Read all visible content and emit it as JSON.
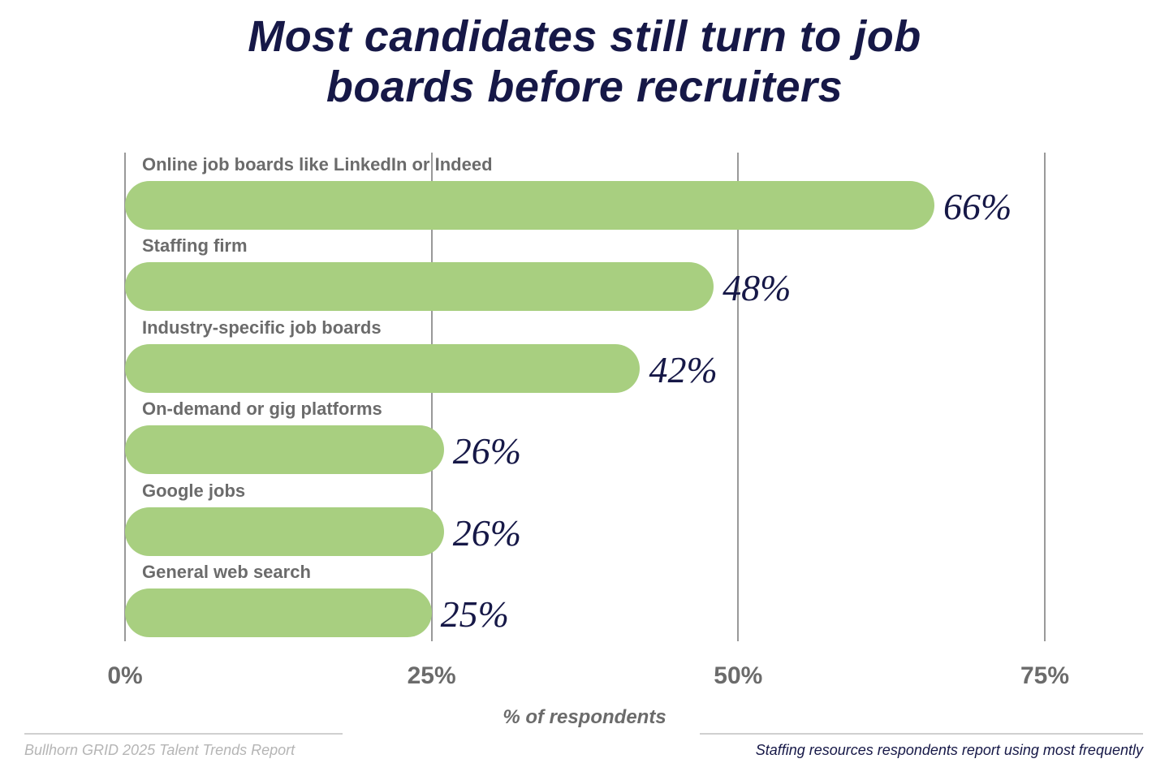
{
  "chart_data": {
    "type": "bar",
    "orientation": "horizontal",
    "title": "Most candidates still turn to job boards before recruiters",
    "title_lines": [
      "Most candidates still turn to job",
      "boards before recruiters"
    ],
    "categories": [
      "Online job boards like LinkedIn or Indeed",
      "Staffing firm",
      "Industry-specific job boards",
      "On-demand or gig platforms",
      "Google jobs",
      "General web search"
    ],
    "values": [
      66,
      48,
      42,
      26,
      26,
      25
    ],
    "data_labels": [
      "66%",
      "48%",
      "42%",
      "26%",
      "26%",
      "25%"
    ],
    "xlabel": "% of respondents",
    "ylabel": "",
    "xlim": [
      0,
      75
    ],
    "x_ticks": [
      0,
      25,
      50,
      75
    ],
    "x_tick_labels": [
      "0%",
      "25%",
      "50%",
      "75%"
    ],
    "grid": true,
    "colors": {
      "bar": "#a8cf80",
      "title": "#161847",
      "value_label": "#161847",
      "text": "#6b6b6b"
    }
  },
  "footer": {
    "source": "Bullhorn GRID 2025 Talent Trends Report",
    "note": "Staffing resources respondents report using most frequently"
  }
}
